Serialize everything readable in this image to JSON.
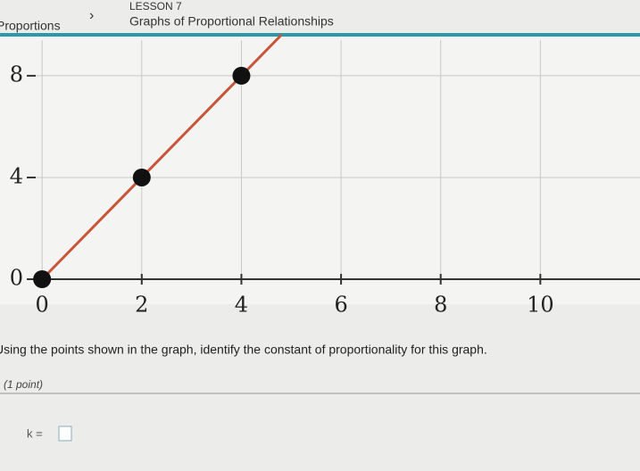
{
  "header": {
    "breadcrumb": "Proportions",
    "lesson": "LESSON 7",
    "title": "Graphs of Proportional Relationships"
  },
  "chart_data": {
    "type": "line",
    "x": [
      0,
      2,
      4
    ],
    "series": [
      {
        "color": "#c8553a",
        "values": [
          0,
          4,
          8
        ]
      }
    ],
    "xlim": [
      -0.2,
      12
    ],
    "ylim": [
      0,
      9.4
    ],
    "xticks": [
      0,
      2,
      4,
      6,
      8,
      10
    ],
    "yticks": [
      0,
      4,
      8
    ],
    "grid": true
  },
  "question": {
    "prompt": "Using the points shown in the graph, identify the constant of proportionality for this graph.",
    "points": "(1 point)",
    "answer_label": "k ="
  }
}
